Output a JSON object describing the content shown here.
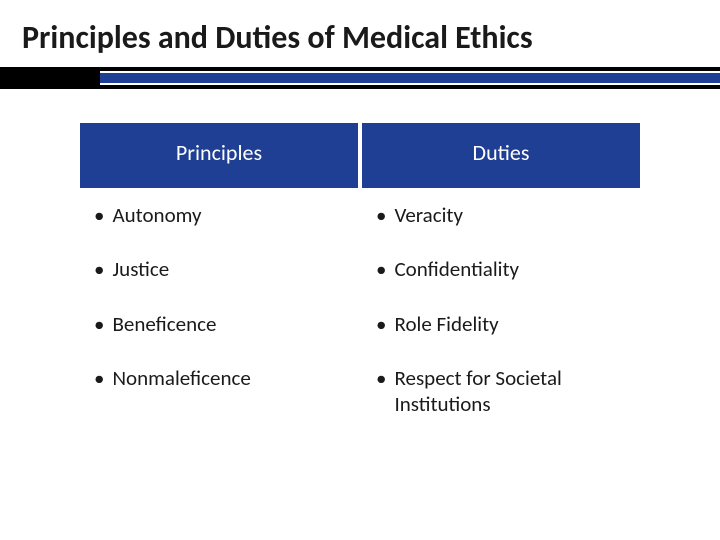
{
  "title": "Principles and Duties of Medical Ethics",
  "colors": {
    "header_bg": "#1f3f94",
    "header_text": "#ffffff",
    "divider_black": "#000000",
    "divider_blue": "#1f3f94",
    "body_text": "#1a1a1a",
    "background": "#ffffff"
  },
  "typography": {
    "title_fontsize": 32,
    "title_weight": 700,
    "header_fontsize": 22,
    "cell_fontsize": 21,
    "font_family": "Calibri"
  },
  "table": {
    "columns": [
      "Principles",
      "Duties"
    ],
    "rows": [
      [
        "Autonomy",
        "Veracity"
      ],
      [
        "Justice",
        "Confidentiality"
      ],
      [
        "Beneficence",
        "Role Fidelity"
      ],
      [
        "Nonmaleficence",
        "Respect for Societal Institutions"
      ]
    ],
    "bullet_char": "•"
  }
}
